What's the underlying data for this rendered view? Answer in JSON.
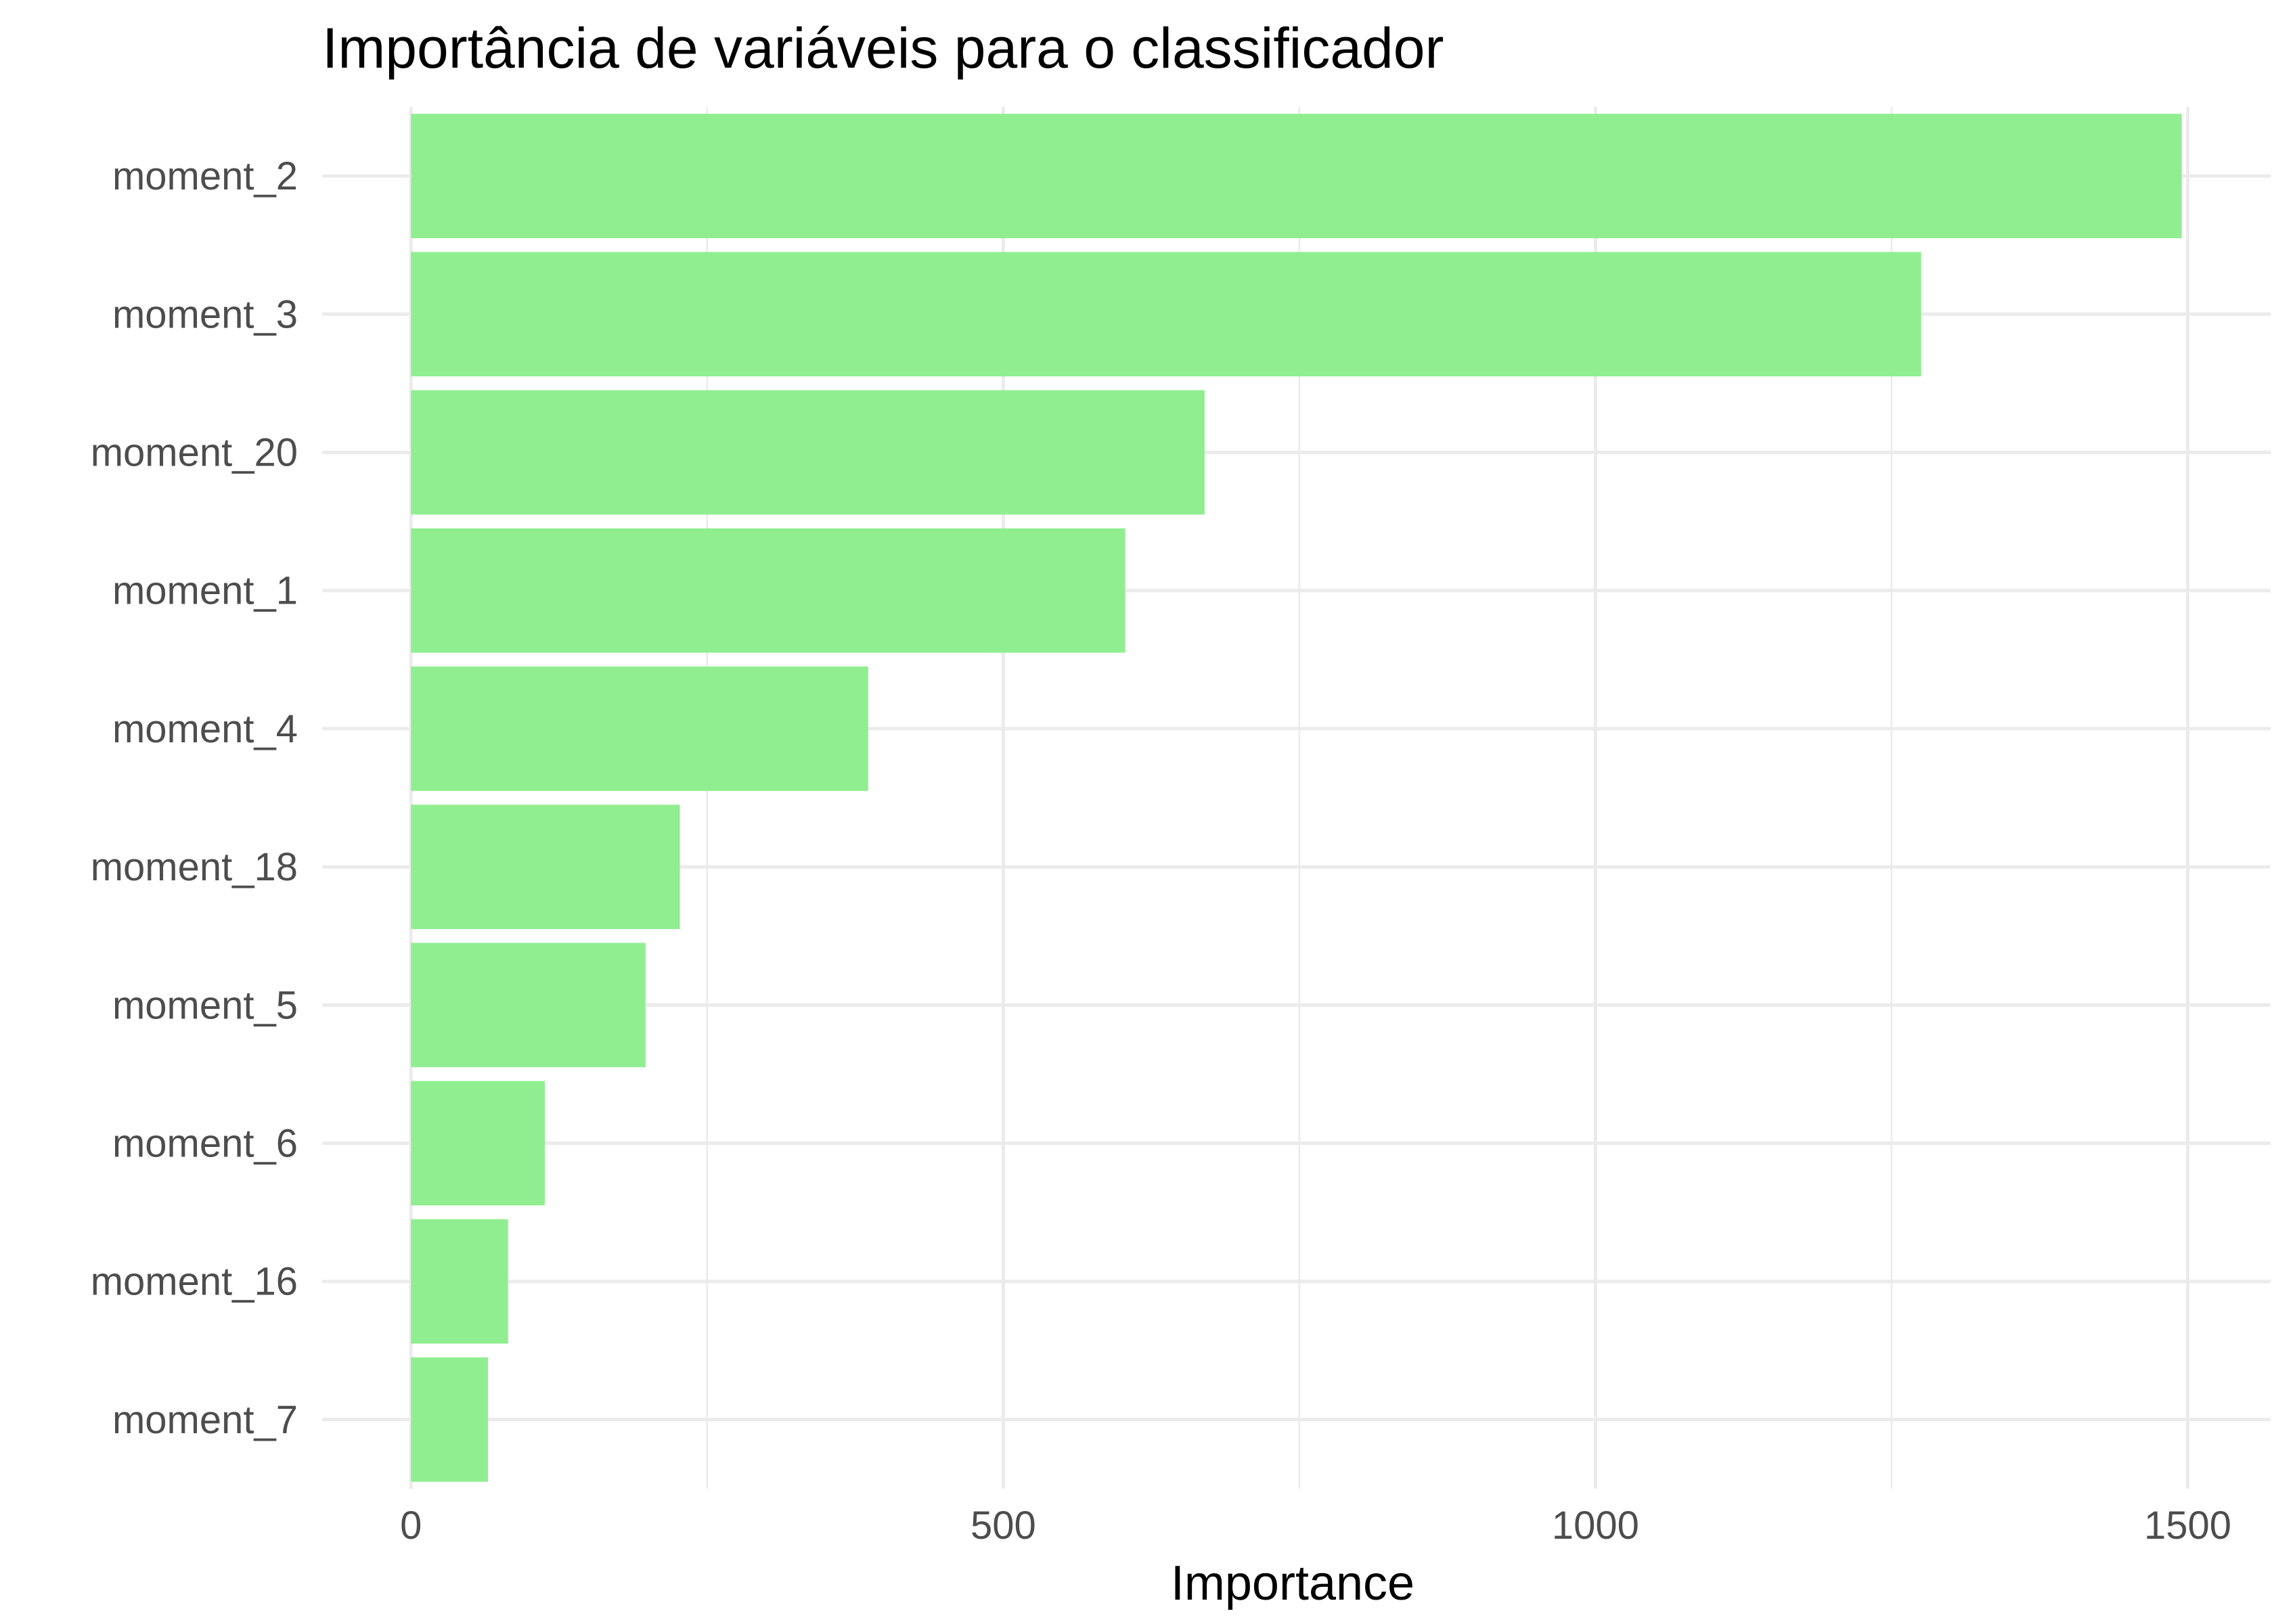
{
  "chart_data": {
    "type": "bar",
    "orientation": "horizontal",
    "title": "Importância de variáveis para o classificador",
    "xlabel": "Importance",
    "ylabel": "",
    "categories": [
      "moment_2",
      "moment_3",
      "moment_20",
      "moment_1",
      "moment_4",
      "moment_18",
      "moment_5",
      "moment_6",
      "moment_16",
      "moment_7"
    ],
    "values": [
      1495,
      1275,
      670,
      603,
      386,
      227,
      198,
      113,
      82,
      65
    ],
    "xlim": [
      -75,
      1570
    ],
    "xticks": [
      0,
      500,
      1000,
      1500
    ],
    "xtick_labels": [
      "0",
      "500",
      "1000",
      "1500"
    ],
    "grid": true,
    "legend": "none",
    "bar_color": "#90ee90"
  }
}
